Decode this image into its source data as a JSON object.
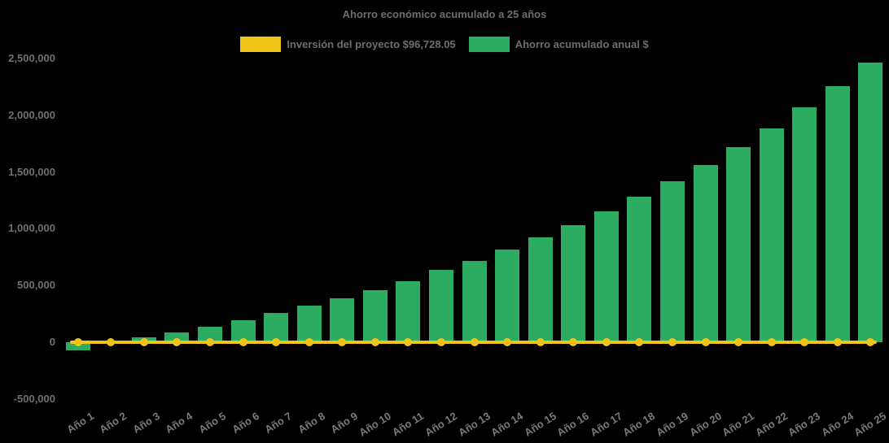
{
  "chart_data": {
    "type": "bar",
    "title": "Ahorro económico acumulado a 25 años",
    "background_color": "#000000",
    "text_color": "#6e6e6e",
    "grid": false,
    "legend_position": "top",
    "ylim": [
      -500000,
      2500000
    ],
    "ytick_labels": [
      "2,500,000",
      "2,000,000",
      "1,500,000",
      "1,000,000",
      "500,000",
      "0",
      "-500,000"
    ],
    "yticks": [
      2500000,
      2000000,
      1500000,
      1000000,
      500000,
      0,
      -500000
    ],
    "categories": [
      "Año 1",
      "Año 2",
      "Año 3",
      "Año 4",
      "Año 5",
      "Año 6",
      "Año 7",
      "Año 8",
      "Año 9",
      "Año 10",
      "Año 11",
      "Año 12",
      "Año 13",
      "Año 14",
      "Año 15",
      "Año 16",
      "Año 17",
      "Año 18",
      "Año 19",
      "Año 20",
      "Año 21",
      "Año 22",
      "Año 23",
      "Año 24",
      "Año 25"
    ],
    "legend": [
      {
        "label": "Inversión del proyecto $96,728.05",
        "color": "#F0C419"
      },
      {
        "label": "Ahorro acumulado anual $",
        "color": "#2BAC60"
      }
    ],
    "series": [
      {
        "name": "Ahorro acumulado anual $",
        "type": "bar",
        "color": "#2BAC60",
        "values": [
          -72000,
          5000,
          42000,
          84000,
          136000,
          192000,
          255000,
          320000,
          385000,
          457000,
          536000,
          636000,
          715000,
          815000,
          922000,
          1030000,
          1152000,
          1281000,
          1417000,
          1560000,
          1716000,
          1883000,
          2070000,
          2256000,
          2466000
        ]
      },
      {
        "name": "Inversión del proyecto $96,728.05",
        "type": "line",
        "color": "#F0C419",
        "marker": "circle",
        "values": [
          0,
          0,
          0,
          0,
          0,
          0,
          0,
          0,
          0,
          0,
          0,
          0,
          0,
          0,
          0,
          0,
          0,
          0,
          0,
          0,
          0,
          0,
          0,
          0,
          0
        ]
      }
    ]
  }
}
